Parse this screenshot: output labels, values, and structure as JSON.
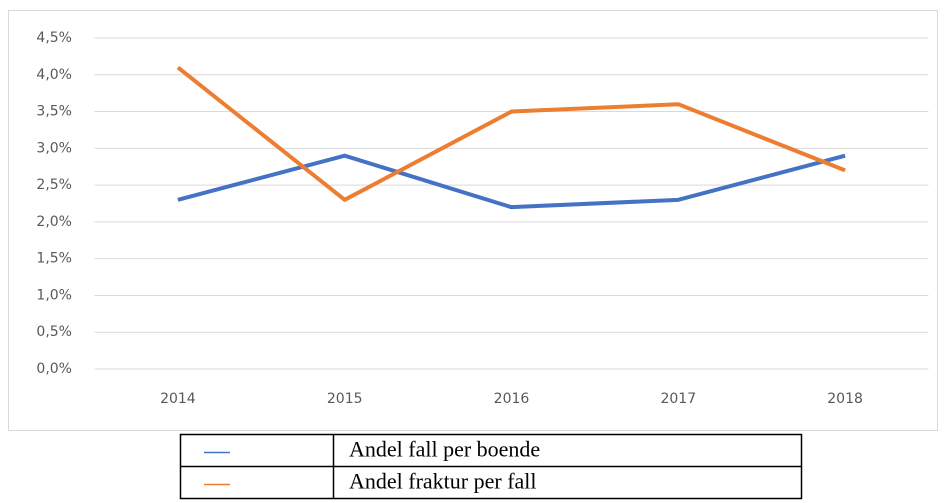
{
  "chart_data": {
    "type": "line",
    "categories": [
      "2014",
      "2015",
      "2016",
      "2017",
      "2018"
    ],
    "series": [
      {
        "name": "Andel fall per boende",
        "color": "#4472c4",
        "values": [
          2.3,
          2.9,
          2.2,
          2.3,
          2.9
        ]
      },
      {
        "name": "Andel fraktur per fall",
        "color": "#ed7d31",
        "values": [
          4.1,
          2.3,
          3.5,
          3.6,
          2.7
        ]
      }
    ],
    "ylim": [
      0,
      4.5
    ],
    "yticks": [
      {
        "value": 0,
        "label": "0,0%"
      },
      {
        "value": 0.5,
        "label": "0,5%"
      },
      {
        "value": 1,
        "label": "1,0%"
      },
      {
        "value": 1.5,
        "label": "1,5%"
      },
      {
        "value": 2,
        "label": "2,0%"
      },
      {
        "value": 2.5,
        "label": "2,5%"
      },
      {
        "value": 3,
        "label": "3,0%"
      },
      {
        "value": 3.5,
        "label": "3,5%"
      },
      {
        "value": 4,
        "label": "4,0%"
      },
      {
        "value": 4.5,
        "label": "4,5%"
      }
    ],
    "grid": true
  }
}
